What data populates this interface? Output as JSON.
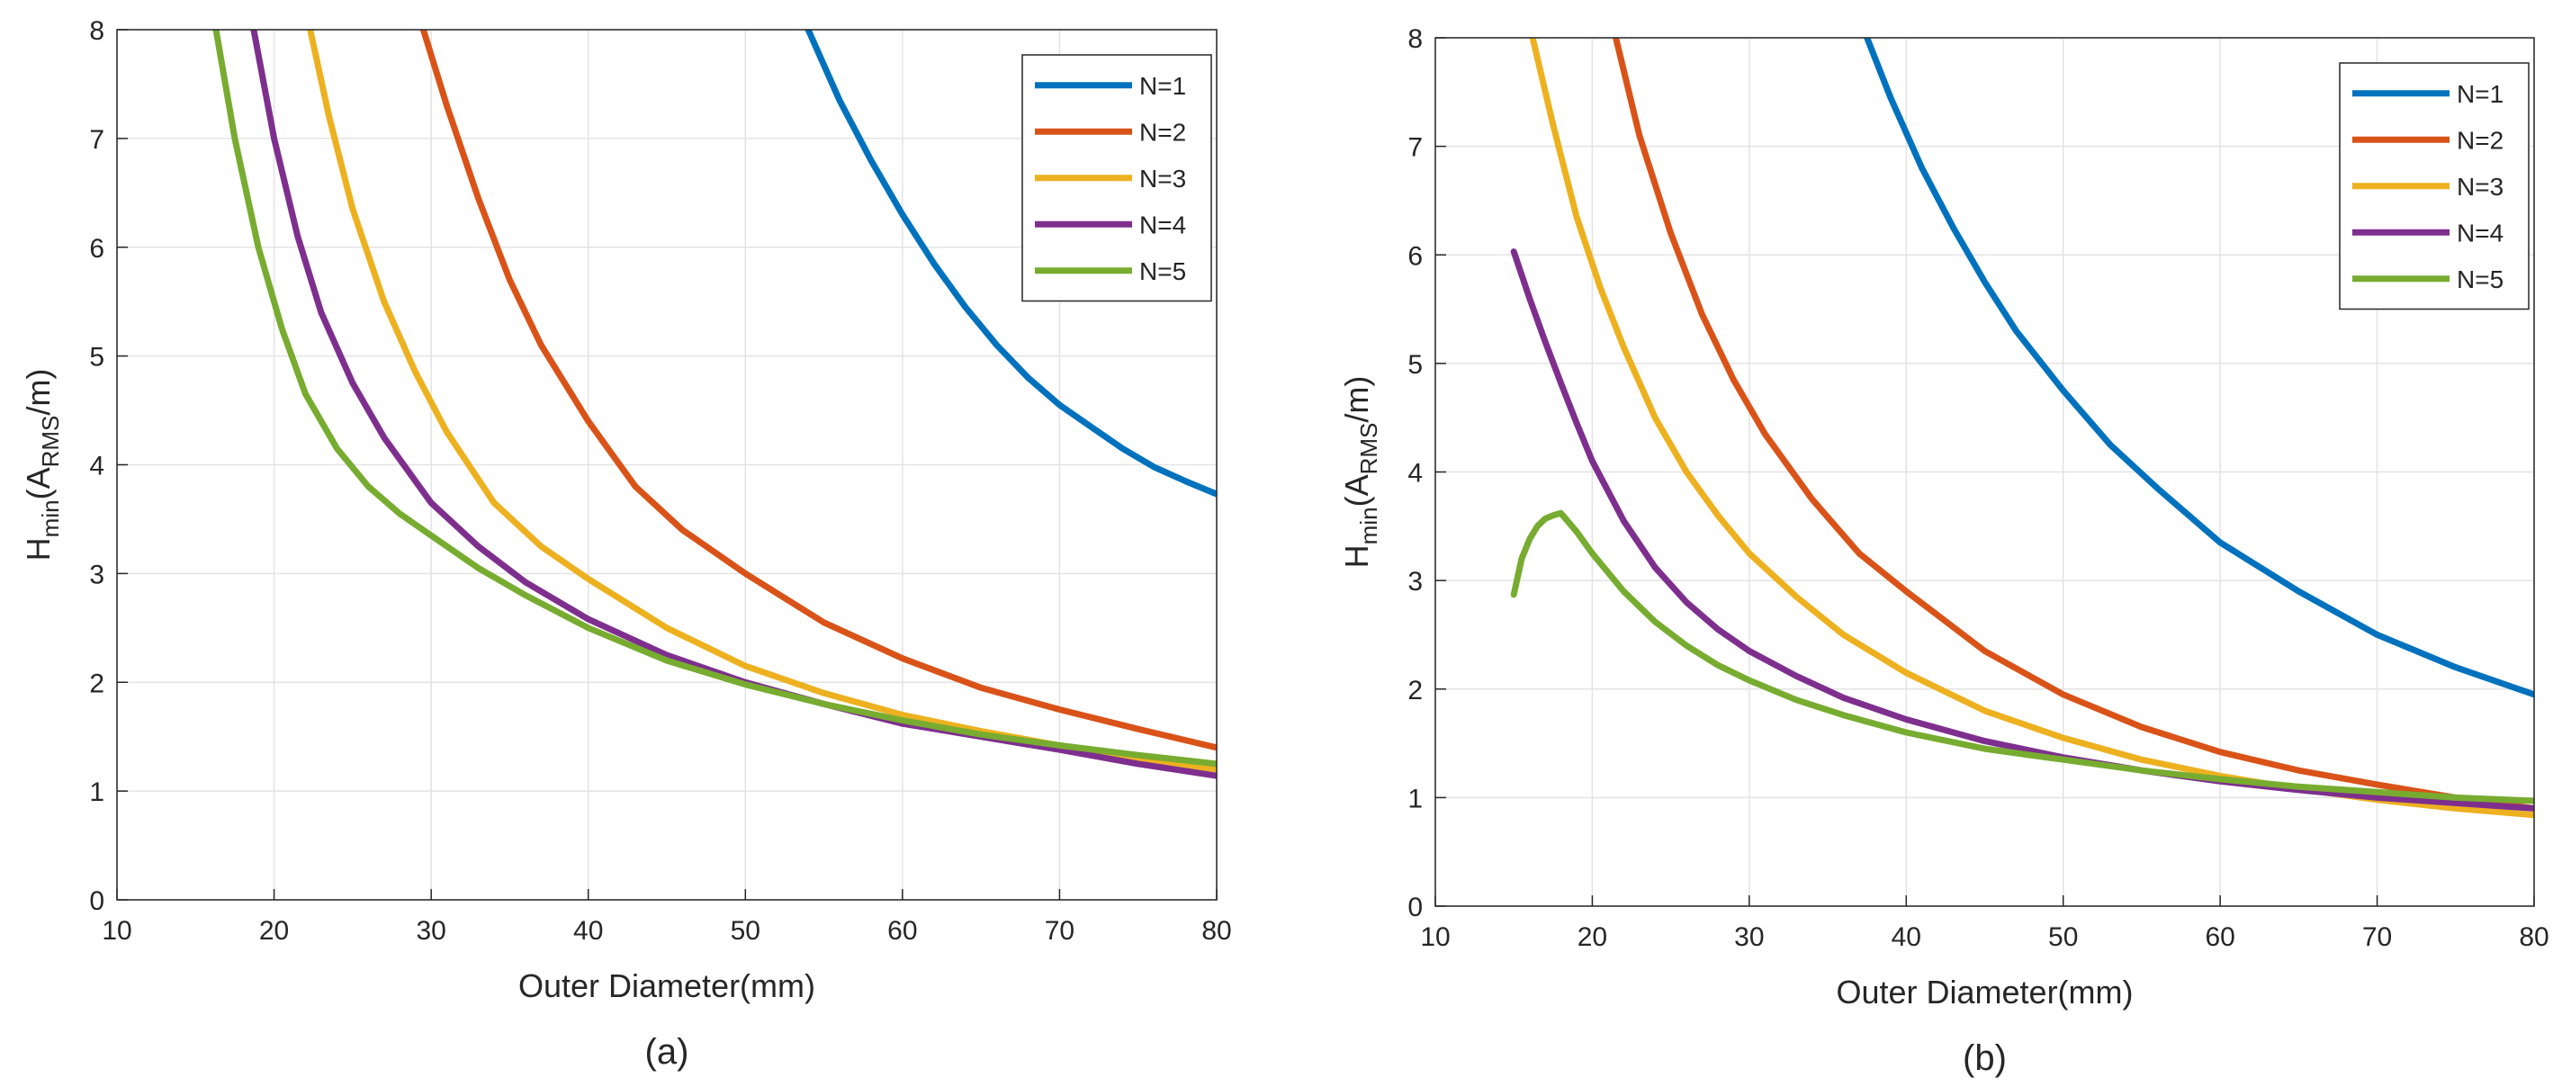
{
  "chart_data": [
    {
      "type": "line",
      "xlabel": "Outer Diameter(mm)",
      "ylabel": {
        "main": "H",
        "sub1": "min",
        "paren_open": "(A",
        "sub2": "RMS",
        "rest": "/m)"
      },
      "panel_label": "(a)",
      "xlim": [
        10,
        80
      ],
      "ylim": [
        0,
        8
      ],
      "xticks": [
        10,
        20,
        30,
        40,
        50,
        60,
        70,
        80
      ],
      "yticks": [
        0,
        1,
        2,
        3,
        4,
        5,
        6,
        7,
        8
      ],
      "grid": true,
      "legend_position": "top-right",
      "series": [
        {
          "name": "N=1",
          "color": "#0072BD",
          "x": [
            54,
            56,
            58,
            60,
            62,
            64,
            66,
            68,
            70,
            72,
            74,
            76,
            78,
            80
          ],
          "y": [
            8.0,
            7.35,
            6.8,
            6.3,
            5.85,
            5.45,
            5.1,
            4.8,
            4.55,
            4.35,
            4.15,
            3.98,
            3.85,
            3.73
          ]
        },
        {
          "name": "N=2",
          "color": "#D95319",
          "x": [
            29.5,
            31,
            33,
            35,
            37,
            40,
            43,
            46,
            50,
            55,
            60,
            65,
            70,
            75,
            80
          ],
          "y": [
            8.0,
            7.3,
            6.45,
            5.7,
            5.1,
            4.4,
            3.8,
            3.4,
            3.0,
            2.55,
            2.22,
            1.95,
            1.75,
            1.57,
            1.4
          ]
        },
        {
          "name": "N=3",
          "color": "#EDB120",
          "x": [
            22.3,
            23.5,
            25,
            27,
            29,
            31,
            34,
            37,
            40,
            45,
            50,
            55,
            60,
            65,
            70,
            75,
            80
          ],
          "y": [
            8.0,
            7.2,
            6.35,
            5.5,
            4.85,
            4.3,
            3.65,
            3.25,
            2.95,
            2.5,
            2.15,
            1.9,
            1.7,
            1.55,
            1.42,
            1.3,
            1.2
          ]
        },
        {
          "name": "N=4",
          "color": "#7E2F8E",
          "x": [
            18.7,
            20,
            21.5,
            23,
            25,
            27,
            30,
            33,
            36,
            40,
            45,
            50,
            55,
            60,
            65,
            70,
            75,
            80
          ],
          "y": [
            8.0,
            7.0,
            6.1,
            5.4,
            4.75,
            4.25,
            3.65,
            3.25,
            2.92,
            2.58,
            2.25,
            2.0,
            1.8,
            1.62,
            1.5,
            1.38,
            1.25,
            1.14
          ]
        },
        {
          "name": "N=5",
          "color": "#77AC30",
          "x": [
            16.3,
            17.5,
            19,
            20.5,
            22,
            24,
            26,
            28,
            30,
            33,
            36,
            40,
            45,
            50,
            55,
            60,
            65,
            70,
            75,
            80
          ],
          "y": [
            8.0,
            7.0,
            6.0,
            5.25,
            4.65,
            4.15,
            3.8,
            3.55,
            3.35,
            3.05,
            2.8,
            2.5,
            2.2,
            1.98,
            1.8,
            1.65,
            1.52,
            1.42,
            1.33,
            1.25
          ]
        }
      ]
    },
    {
      "type": "line",
      "xlabel": "Outer Diameter(mm)",
      "ylabel": {
        "main": "H",
        "sub1": "min",
        "paren_open": "(A",
        "sub2": "RMS",
        "rest": "/m)"
      },
      "panel_label": "(b)",
      "xlim": [
        10,
        80
      ],
      "ylim": [
        0,
        8
      ],
      "xticks": [
        10,
        20,
        30,
        40,
        50,
        60,
        70,
        80
      ],
      "yticks": [
        0,
        1,
        2,
        3,
        4,
        5,
        6,
        7,
        8
      ],
      "grid": true,
      "legend_position": "top-right",
      "series": [
        {
          "name": "N=1",
          "color": "#0072BD",
          "x": [
            37.5,
            39,
            41,
            43,
            45,
            47,
            50,
            53,
            56,
            60,
            65,
            70,
            75,
            80
          ],
          "y": [
            8.0,
            7.45,
            6.8,
            6.25,
            5.75,
            5.3,
            4.75,
            4.25,
            3.85,
            3.35,
            2.9,
            2.5,
            2.2,
            1.95
          ]
        },
        {
          "name": "N=2",
          "color": "#D95319",
          "x": [
            21.5,
            23,
            25,
            27,
            29,
            31,
            34,
            37,
            40,
            45,
            50,
            55,
            60,
            65,
            70,
            75,
            80
          ],
          "y": [
            8.0,
            7.1,
            6.2,
            5.45,
            4.85,
            4.35,
            3.75,
            3.25,
            2.9,
            2.35,
            1.95,
            1.65,
            1.42,
            1.25,
            1.12,
            1.0,
            0.9
          ]
        },
        {
          "name": "N=3",
          "color": "#EDB120",
          "x": [
            16.2,
            17.5,
            19,
            20.5,
            22,
            24,
            26,
            28,
            30,
            33,
            36,
            40,
            45,
            50,
            55,
            60,
            65,
            70,
            75,
            80
          ],
          "y": [
            8.0,
            7.2,
            6.35,
            5.7,
            5.15,
            4.5,
            4.0,
            3.6,
            3.25,
            2.85,
            2.5,
            2.15,
            1.8,
            1.55,
            1.35,
            1.2,
            1.08,
            0.98,
            0.9,
            0.84
          ]
        },
        {
          "name": "N=4",
          "color": "#7E2F8E",
          "x": [
            15,
            16,
            17,
            18,
            19,
            20,
            22,
            24,
            26,
            28,
            30,
            33,
            36,
            40,
            45,
            50,
            55,
            60,
            65,
            70,
            75,
            80
          ],
          "y": [
            6.03,
            5.6,
            5.2,
            4.82,
            4.45,
            4.1,
            3.55,
            3.12,
            2.8,
            2.55,
            2.35,
            2.12,
            1.92,
            1.72,
            1.52,
            1.37,
            1.25,
            1.15,
            1.07,
            1.0,
            0.95,
            0.9
          ]
        },
        {
          "name": "N=5",
          "color": "#77AC30",
          "x": [
            15,
            15.5,
            16,
            16.5,
            17,
            17.5,
            18,
            19,
            20,
            22,
            24,
            26,
            28,
            30,
            33,
            36,
            40,
            45,
            50,
            55,
            60,
            65,
            70,
            75,
            80
          ],
          "y": [
            2.87,
            3.2,
            3.38,
            3.5,
            3.57,
            3.6,
            3.62,
            3.45,
            3.25,
            2.9,
            2.62,
            2.4,
            2.22,
            2.08,
            1.9,
            1.76,
            1.6,
            1.45,
            1.35,
            1.25,
            1.17,
            1.1,
            1.05,
            1.0,
            0.97
          ]
        }
      ]
    }
  ]
}
